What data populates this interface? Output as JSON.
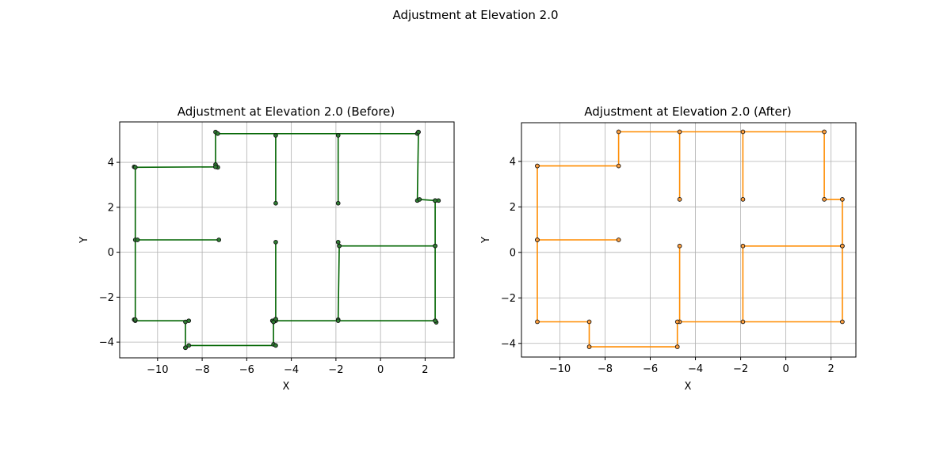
{
  "figure": {
    "suptitle": "Adjustment at Elevation 2.0"
  },
  "chart_data": [
    {
      "type": "line",
      "title": "Adjustment at Elevation 2.0 (Before)",
      "xlabel": "X",
      "ylabel": "Y",
      "xlim": [
        -11.7,
        3.3
      ],
      "ylim": [
        -4.7,
        5.8
      ],
      "xticks": [
        -10,
        -8,
        -6,
        -4,
        -2,
        0,
        2
      ],
      "yticks": [
        -4,
        -2,
        0,
        2,
        4
      ],
      "grid": true,
      "line_color": "#006400",
      "marker_face": "#2e7d32",
      "paths": [
        [
          [
            -11.05,
            3.8
          ],
          [
            -11.0,
            3.78
          ],
          [
            -7.4,
            3.8
          ],
          [
            -7.4,
            3.9
          ],
          [
            -7.3,
            3.78
          ]
        ],
        [
          [
            -7.3,
            3.78
          ],
          [
            -7.4,
            3.8
          ],
          [
            -7.4,
            5.35
          ],
          [
            -7.3,
            5.28
          ],
          [
            1.65,
            5.28
          ],
          [
            1.7,
            5.35
          ]
        ],
        [
          [
            1.7,
            5.35
          ],
          [
            1.65,
            2.3
          ],
          [
            1.75,
            2.35
          ],
          [
            2.45,
            2.3
          ],
          [
            2.6,
            2.3
          ]
        ],
        [
          [
            2.45,
            2.3
          ],
          [
            2.45,
            0.28
          ],
          [
            2.45,
            -3.05
          ],
          [
            2.5,
            -3.12
          ]
        ],
        [
          [
            2.45,
            0.28
          ],
          [
            -1.85,
            0.28
          ],
          [
            -1.9,
            0.45
          ]
        ],
        [
          [
            -1.85,
            0.28
          ],
          [
            -1.9,
            -3.0
          ],
          [
            -1.9,
            -3.05
          ]
        ],
        [
          [
            2.45,
            -3.05
          ],
          [
            -4.7,
            -3.05
          ],
          [
            -4.7,
            -2.98
          ],
          [
            -4.85,
            -3.05
          ],
          [
            -4.8,
            -3.1
          ]
        ],
        [
          [
            -4.8,
            -3.1
          ],
          [
            -4.8,
            -4.1
          ],
          [
            -4.7,
            -4.15
          ],
          [
            -8.6,
            -4.15
          ],
          [
            -8.75,
            -4.25
          ]
        ],
        [
          [
            -8.75,
            -4.25
          ],
          [
            -8.75,
            -3.1
          ],
          [
            -8.6,
            -3.05
          ],
          [
            -11.0,
            -3.05
          ],
          [
            -11.05,
            -3.0
          ]
        ],
        [
          [
            -11.0,
            -3.0
          ],
          [
            -11.0,
            0.55
          ],
          [
            -11.0,
            3.78
          ]
        ],
        [
          [
            -10.9,
            0.55
          ],
          [
            -7.25,
            0.55
          ]
        ],
        [
          [
            -4.7,
            5.2
          ],
          [
            -4.7,
            2.18
          ]
        ],
        [
          [
            -1.9,
            5.2
          ],
          [
            -1.9,
            2.18
          ]
        ],
        [
          [
            -4.7,
            0.45
          ],
          [
            -4.7,
            -2.98
          ]
        ]
      ]
    },
    {
      "type": "line",
      "title": "Adjustment at Elevation 2.0 (After)",
      "xlabel": "X",
      "ylabel": "Y",
      "xlim": [
        -11.7,
        3.1
      ],
      "ylim": [
        -4.6,
        5.7
      ],
      "xticks": [
        -10,
        -8,
        -6,
        -4,
        -2,
        0,
        2
      ],
      "yticks": [
        -4,
        -2,
        0,
        2,
        4
      ],
      "grid": true,
      "line_color": "#ff8c00",
      "marker_face": "#ffa040",
      "paths": [
        [
          [
            -11.0,
            3.8
          ],
          [
            -7.4,
            3.8
          ],
          [
            -7.4,
            5.3
          ],
          [
            1.7,
            5.3
          ],
          [
            1.7,
            2.33
          ],
          [
            2.5,
            2.33
          ],
          [
            2.5,
            0.28
          ],
          [
            2.5,
            -3.05
          ],
          [
            -4.7,
            -3.05
          ],
          [
            -4.7,
            0.28
          ]
        ],
        [
          [
            2.5,
            0.28
          ],
          [
            -1.9,
            0.28
          ],
          [
            -1.9,
            -3.05
          ]
        ],
        [
          [
            -4.8,
            -3.05
          ],
          [
            -4.8,
            -4.15
          ],
          [
            -8.7,
            -4.15
          ],
          [
            -8.7,
            -3.05
          ],
          [
            -11.0,
            -3.05
          ],
          [
            -11.0,
            0.55
          ],
          [
            -11.0,
            3.8
          ]
        ],
        [
          [
            -11.0,
            0.55
          ],
          [
            -7.4,
            0.55
          ]
        ],
        [
          [
            -4.7,
            5.3
          ],
          [
            -4.7,
            2.33
          ]
        ],
        [
          [
            -1.9,
            5.3
          ],
          [
            -1.9,
            2.33
          ]
        ]
      ]
    }
  ]
}
